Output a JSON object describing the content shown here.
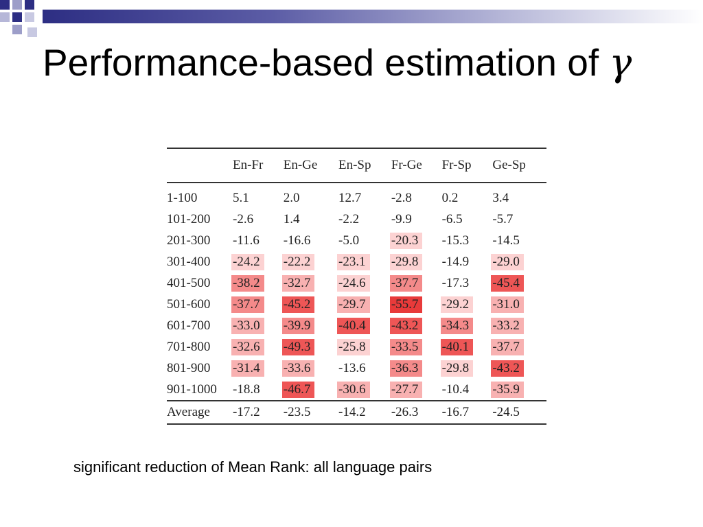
{
  "slide": {
    "title_main": "Performance-based estimation of ",
    "title_symbol": "γ",
    "note": "significant reduction of Mean Rank: all language pairs"
  },
  "table": {
    "columns": [
      "",
      "En-Fr",
      "En-Ge",
      "En-Sp",
      "Fr-Ge",
      "Fr-Sp",
      "Ge-Sp"
    ],
    "rows": [
      {
        "label": "1-100",
        "values": [
          "5.1",
          "2.0",
          "12.7",
          "-2.8",
          "0.2",
          "3.4"
        ],
        "shade": [
          0,
          0,
          0,
          0,
          0,
          0
        ]
      },
      {
        "label": "101-200",
        "values": [
          "-2.6",
          "1.4",
          "-2.2",
          "-9.9",
          "-6.5",
          "-5.7"
        ],
        "shade": [
          0,
          0,
          0,
          0,
          0,
          0
        ]
      },
      {
        "label": "201-300",
        "values": [
          "-11.6",
          "-16.6",
          "-5.0",
          "-20.3",
          "-15.3",
          "-14.5"
        ],
        "shade": [
          0,
          0,
          0,
          1,
          0,
          0
        ]
      },
      {
        "label": "301-400",
        "values": [
          "-24.2",
          "-22.2",
          "-23.1",
          "-29.8",
          "-14.9",
          "-29.0"
        ],
        "shade": [
          1,
          1,
          1,
          1,
          0,
          1
        ]
      },
      {
        "label": "401-500",
        "values": [
          "-38.2",
          "-32.7",
          "-24.6",
          "-37.7",
          "-17.3",
          "-45.4"
        ],
        "shade": [
          3,
          2,
          1,
          3,
          0,
          4
        ]
      },
      {
        "label": "501-600",
        "values": [
          "-37.7",
          "-45.2",
          "-29.7",
          "-55.7",
          "-29.2",
          "-31.0"
        ],
        "shade": [
          3,
          4,
          2,
          5,
          1,
          2
        ]
      },
      {
        "label": "601-700",
        "values": [
          "-33.0",
          "-39.9",
          "-40.4",
          "-43.2",
          "-34.3",
          "-33.2"
        ],
        "shade": [
          2,
          3,
          4,
          4,
          3,
          2
        ]
      },
      {
        "label": "701-800",
        "values": [
          "-32.6",
          "-49.3",
          "-25.8",
          "-33.5",
          "-40.1",
          "-37.7"
        ],
        "shade": [
          2,
          4,
          1,
          3,
          4,
          2
        ]
      },
      {
        "label": "801-900",
        "values": [
          "-31.4",
          "-33.6",
          "-13.6",
          "-36.3",
          "-29.8",
          "-43.2"
        ],
        "shade": [
          2,
          2,
          0,
          3,
          1,
          4
        ]
      },
      {
        "label": "901-1000",
        "values": [
          "-18.8",
          "-46.7",
          "-30.6",
          "-27.7",
          "-10.4",
          "-35.9"
        ],
        "shade": [
          0,
          4,
          2,
          2,
          0,
          2
        ]
      }
    ],
    "average": {
      "label": "Average",
      "values": [
        "-17.2",
        "-23.5",
        "-14.2",
        "-26.3",
        "-16.7",
        "-24.5"
      ]
    },
    "shade_colors": [
      "transparent",
      "#fcd2d2",
      "#f8b1b1",
      "#f48a8a",
      "#ee5656",
      "#e83a3a"
    ]
  }
}
